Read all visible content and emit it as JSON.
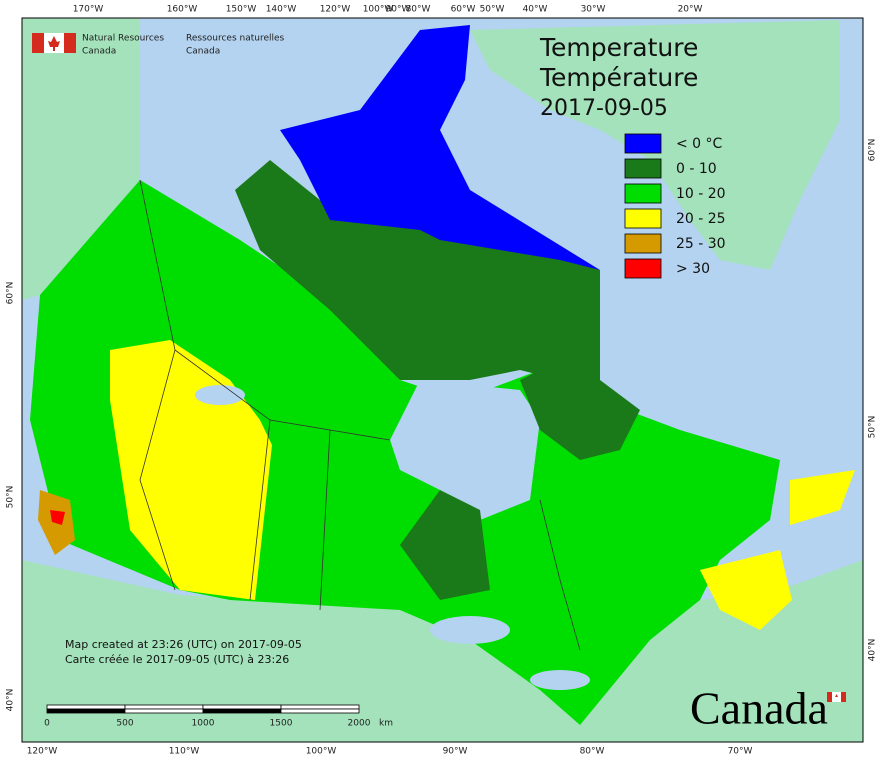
{
  "agency": {
    "en": [
      "Natural Resources",
      "Canada"
    ],
    "fr": [
      "Ressources naturelles",
      "Canada"
    ]
  },
  "title": [
    "Temperature",
    "Température",
    "2017-09-05"
  ],
  "legend": [
    {
      "label": "< 0 °C",
      "color": "#0000ff"
    },
    {
      "label": "0 - 10",
      "color": "#1a7a1a"
    },
    {
      "label": "10 - 20",
      "color": "#00dd00"
    },
    {
      "label": "20 - 25",
      "color": "#ffff00"
    },
    {
      "label": "25 - 30",
      "color": "#d49a00"
    },
    {
      "label": "> 30",
      "color": "#ff0000"
    }
  ],
  "top_longitudes": [
    "170°W",
    "160°W",
    "150°W",
    "140°W",
    "120°W",
    "100°W",
    "90°W",
    "80°W",
    "60°W",
    "50°W",
    "40°W",
    "30°W",
    "20°W"
  ],
  "bottom_longitudes": [
    "120°W",
    "110°W",
    "100°W",
    "90°W",
    "80°W",
    "70°W"
  ],
  "left_latitudes": [
    "60°N",
    "50°N",
    "40°N"
  ],
  "right_latitudes": [
    "60°N",
    "50°N",
    "40°N"
  ],
  "credits": [
    "Map created at 23:26 (UTC) on 2017-09-05",
    "Carte créée le 2017-09-05 (UTC) à 23:26"
  ],
  "scale_bar": {
    "labels": [
      0,
      500,
      1000,
      1500,
      2000
    ],
    "unit": "km"
  },
  "wordmark": "Canada"
}
